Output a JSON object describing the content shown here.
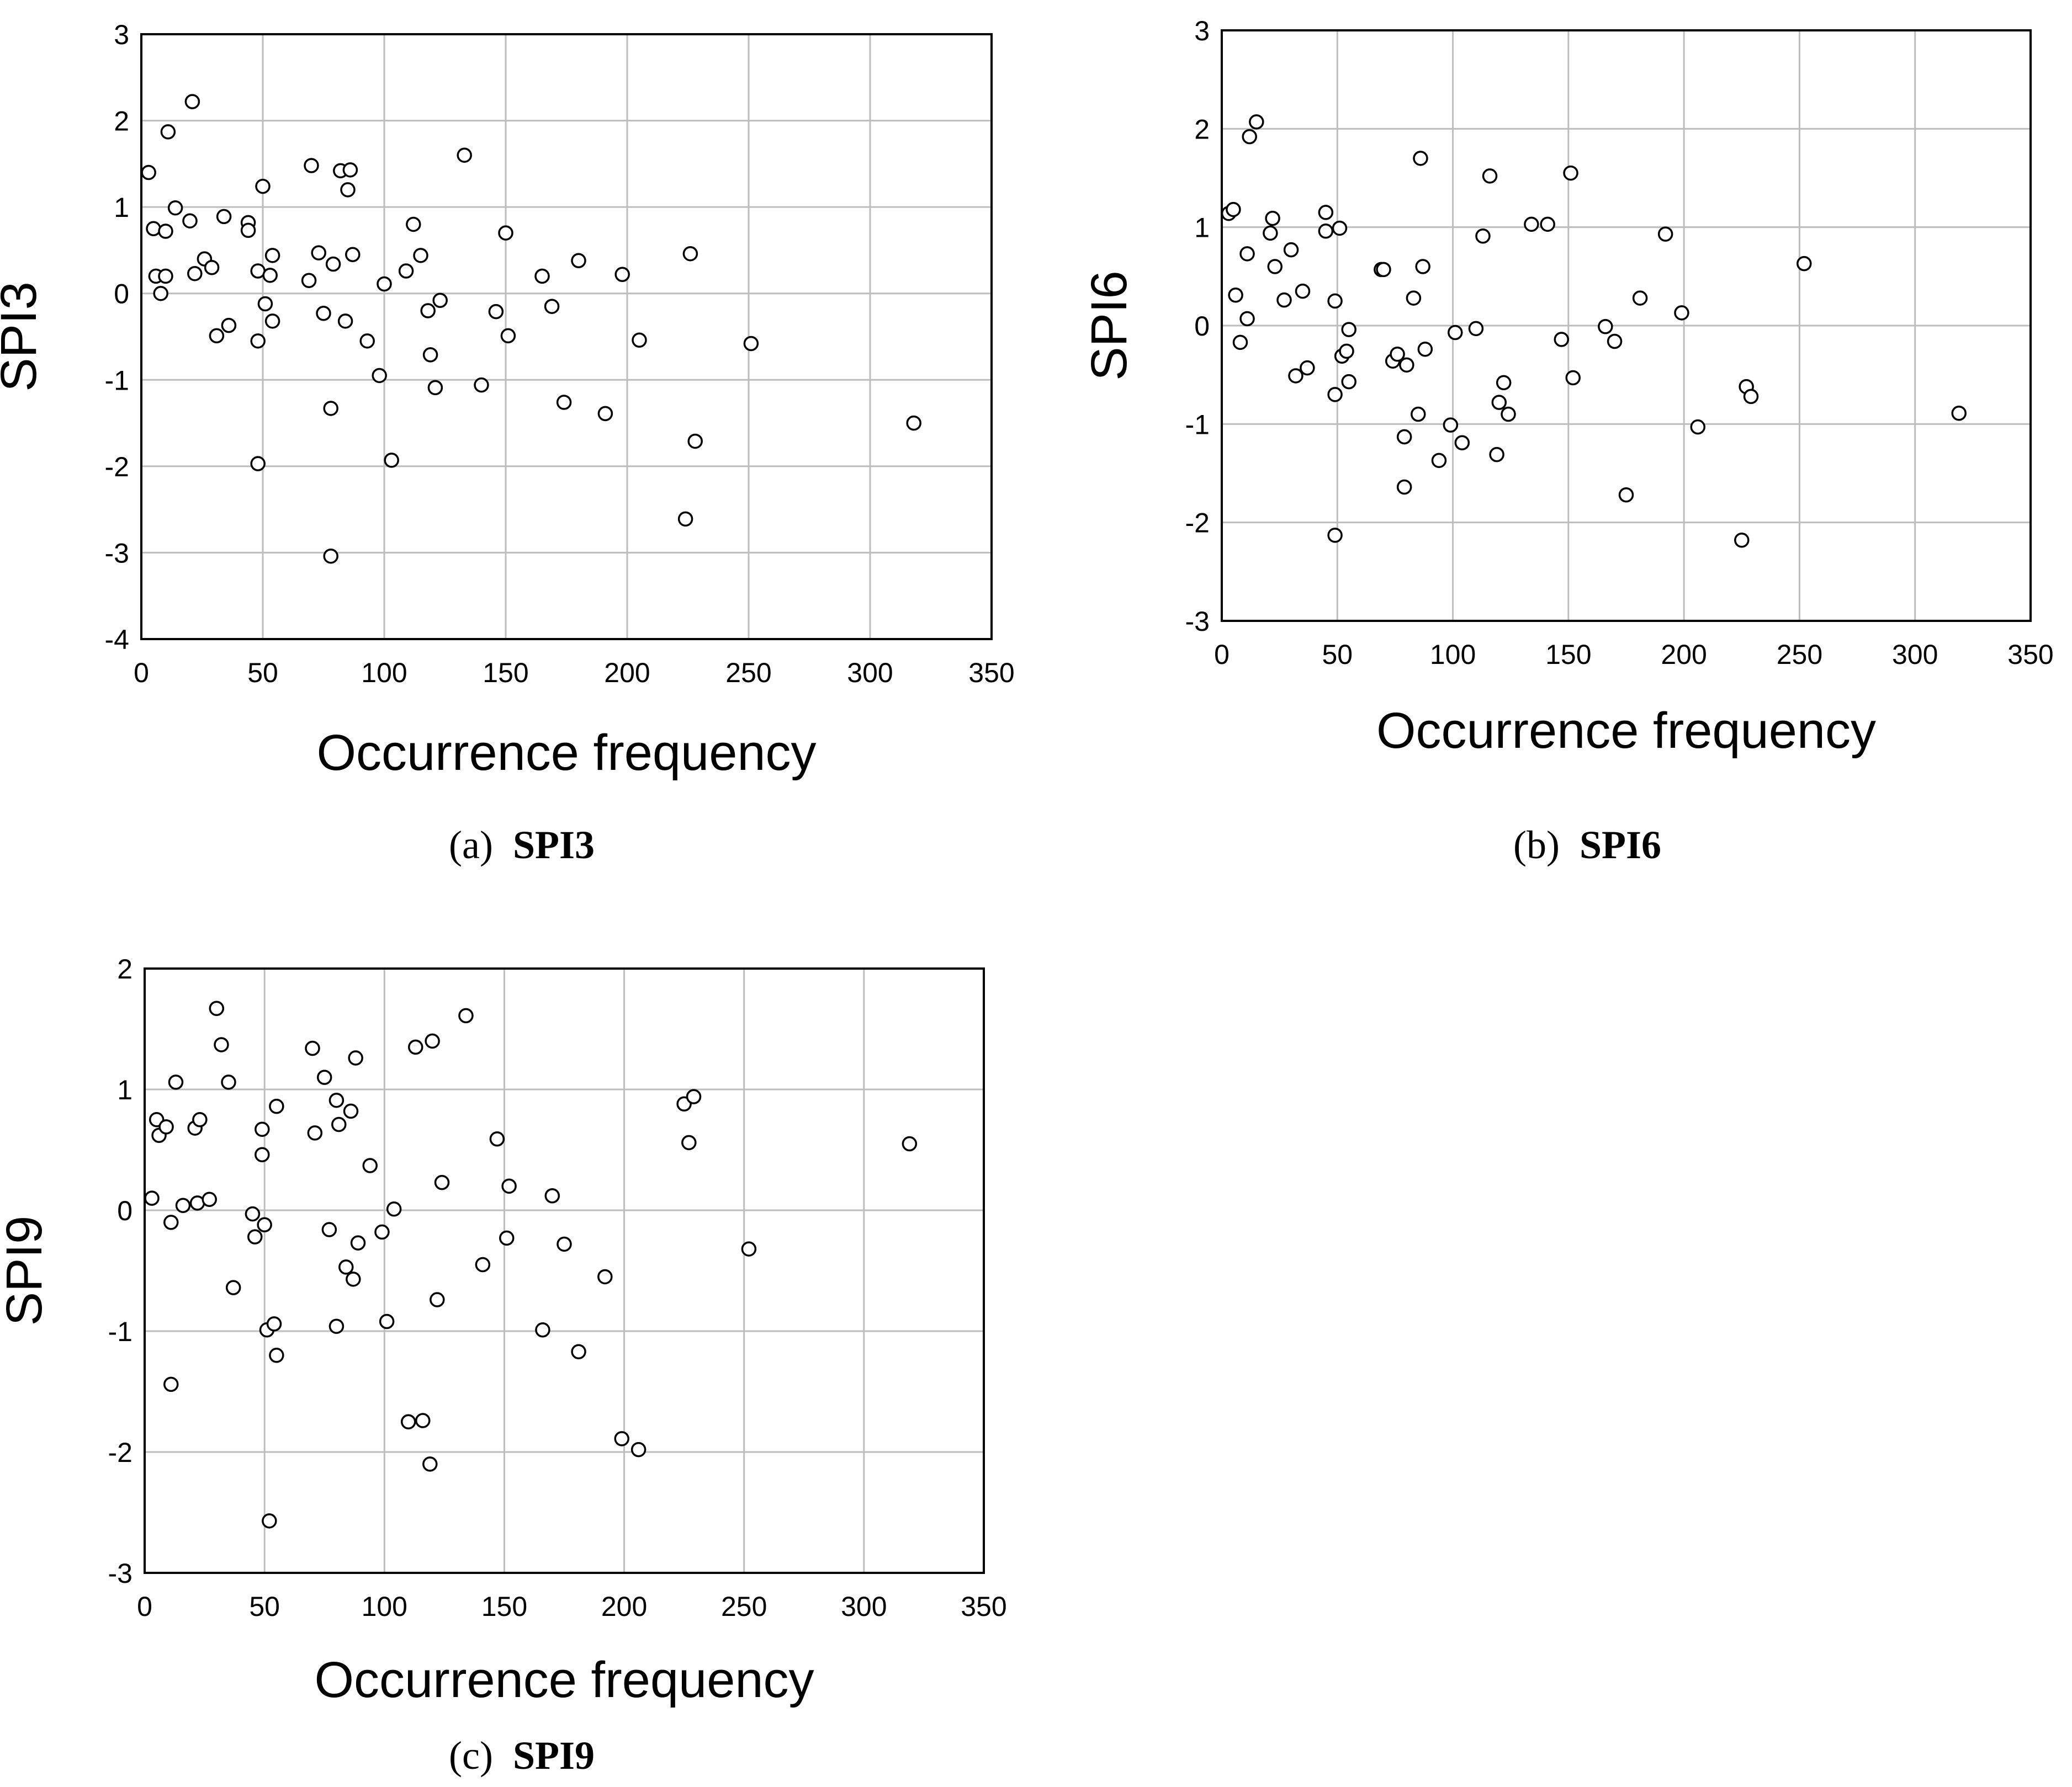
{
  "chart_data": [
    {
      "id": "spi3",
      "type": "scatter",
      "title": "",
      "caption": {
        "label": "(a)",
        "name": "SPI3"
      },
      "xlabel": "Occurrence frequency",
      "ylabel": "SPI3",
      "xlim": [
        0,
        350
      ],
      "ylim": [
        -4,
        3
      ],
      "xticks": [
        0,
        50,
        100,
        150,
        200,
        250,
        300,
        350
      ],
      "yticks": [
        -4,
        -3,
        -2,
        -1,
        0,
        1,
        2,
        3
      ],
      "grid": true,
      "points": [
        [
          3,
          1.4
        ],
        [
          5,
          0.75
        ],
        [
          6,
          0.2
        ],
        [
          8,
          0.0
        ],
        [
          10,
          0.72
        ],
        [
          10,
          0.2
        ],
        [
          11,
          1.87
        ],
        [
          14,
          0.99
        ],
        [
          20,
          0.84
        ],
        [
          21,
          2.22
        ],
        [
          22,
          0.23
        ],
        [
          26,
          0.4
        ],
        [
          29,
          0.3
        ],
        [
          31,
          -0.49
        ],
        [
          34,
          0.89
        ],
        [
          36,
          -0.37
        ],
        [
          44,
          0.82
        ],
        [
          44,
          0.73
        ],
        [
          48,
          0.26
        ],
        [
          48,
          -0.55
        ],
        [
          48,
          -1.97
        ],
        [
          50,
          1.24
        ],
        [
          51,
          -0.12
        ],
        [
          53,
          0.21
        ],
        [
          54,
          0.44
        ],
        [
          54,
          -0.32
        ],
        [
          69,
          0.15
        ],
        [
          70,
          1.48
        ],
        [
          73,
          0.47
        ],
        [
          75,
          -0.23
        ],
        [
          78,
          -1.33
        ],
        [
          78,
          -3.04
        ],
        [
          79,
          0.34
        ],
        [
          82,
          1.42
        ],
        [
          84,
          -0.32
        ],
        [
          85,
          1.2
        ],
        [
          86,
          1.43
        ],
        [
          87,
          0.45
        ],
        [
          93,
          -0.55
        ],
        [
          98,
          -0.95
        ],
        [
          100,
          0.11
        ],
        [
          103,
          -1.93
        ],
        [
          109,
          0.26
        ],
        [
          112,
          0.8
        ],
        [
          115,
          0.44
        ],
        [
          118,
          -0.2
        ],
        [
          119,
          -0.71
        ],
        [
          121,
          -1.09
        ],
        [
          123,
          -0.08
        ],
        [
          133,
          1.6
        ],
        [
          140,
          -1.06
        ],
        [
          146,
          -0.21
        ],
        [
          150,
          0.7
        ],
        [
          151,
          -0.49
        ],
        [
          165,
          0.2
        ],
        [
          169,
          -0.15
        ],
        [
          174,
          -1.26
        ],
        [
          180,
          0.38
        ],
        [
          191,
          -1.39
        ],
        [
          198,
          0.22
        ],
        [
          205,
          -0.54
        ],
        [
          224,
          -2.61
        ],
        [
          226,
          0.46
        ],
        [
          228,
          -1.71
        ],
        [
          251,
          -0.58
        ],
        [
          318,
          -1.5
        ]
      ]
    },
    {
      "id": "spi6",
      "type": "scatter",
      "title": "",
      "caption": {
        "label": "(b)",
        "name": "SPI6"
      },
      "xlabel": "Occurrence frequency",
      "ylabel": "SPI6",
      "xlim": [
        0,
        350
      ],
      "ylim": [
        -3,
        3
      ],
      "xticks": [
        0,
        50,
        100,
        150,
        200,
        250,
        300,
        350
      ],
      "yticks": [
        -3,
        -2,
        -1,
        0,
        1,
        2,
        3
      ],
      "grid": true,
      "points": [
        [
          3,
          1.14
        ],
        [
          5,
          1.18
        ],
        [
          6,
          0.31
        ],
        [
          8,
          -0.17
        ],
        [
          11,
          0.73
        ],
        [
          11,
          0.07
        ],
        [
          12,
          1.92
        ],
        [
          15,
          2.07
        ],
        [
          21,
          0.94
        ],
        [
          22,
          1.09
        ],
        [
          23,
          0.6
        ],
        [
          27,
          0.26
        ],
        [
          30,
          0.77
        ],
        [
          32,
          -0.51
        ],
        [
          35,
          0.35
        ],
        [
          37,
          -0.43
        ],
        [
          45,
          1.15
        ],
        [
          45,
          0.96
        ],
        [
          49,
          0.25
        ],
        [
          49,
          -0.7
        ],
        [
          49,
          -2.13
        ],
        [
          51,
          0.99
        ],
        [
          52,
          -0.31
        ],
        [
          54,
          -0.26
        ],
        [
          55,
          -0.04
        ],
        [
          55,
          -0.57
        ],
        [
          69,
          0.57
        ],
        [
          70,
          0.57
        ],
        [
          74,
          -0.36
        ],
        [
          76,
          -0.29
        ],
        [
          79,
          -1.13
        ],
        [
          79,
          -1.64
        ],
        [
          80,
          -0.4
        ],
        [
          83,
          0.28
        ],
        [
          85,
          -0.9
        ],
        [
          86,
          1.7
        ],
        [
          87,
          0.6
        ],
        [
          88,
          -0.24
        ],
        [
          94,
          -1.37
        ],
        [
          99,
          -1.01
        ],
        [
          101,
          -0.07
        ],
        [
          104,
          -1.19
        ],
        [
          110,
          -0.03
        ],
        [
          113,
          0.91
        ],
        [
          116,
          1.52
        ],
        [
          119,
          -1.31
        ],
        [
          120,
          -0.78
        ],
        [
          122,
          -0.58
        ],
        [
          124,
          -0.9
        ],
        [
          134,
          1.03
        ],
        [
          141,
          1.03
        ],
        [
          147,
          -0.14
        ],
        [
          151,
          1.55
        ],
        [
          152,
          -0.53
        ],
        [
          166,
          -0.01
        ],
        [
          170,
          -0.16
        ],
        [
          175,
          -1.72
        ],
        [
          181,
          0.28
        ],
        [
          192,
          0.93
        ],
        [
          199,
          0.13
        ],
        [
          206,
          -1.03
        ],
        [
          225,
          -2.18
        ],
        [
          227,
          -0.62
        ],
        [
          229,
          -0.72
        ],
        [
          252,
          0.63
        ],
        [
          319,
          -0.89
        ]
      ]
    },
    {
      "id": "spi9",
      "type": "scatter",
      "title": "",
      "caption": {
        "label": "(c)",
        "name": "SPI9"
      },
      "xlabel": "Occurrence frequency",
      "ylabel": "SPI9",
      "xlim": [
        0,
        350
      ],
      "ylim": [
        -3,
        2
      ],
      "xticks": [
        0,
        50,
        100,
        150,
        200,
        250,
        300,
        350
      ],
      "yticks": [
        -3,
        -2,
        -1,
        0,
        1,
        2
      ],
      "grid": true,
      "points": [
        [
          3,
          0.1
        ],
        [
          5,
          0.75
        ],
        [
          6,
          0.62
        ],
        [
          9,
          0.69
        ],
        [
          11,
          -0.1
        ],
        [
          11,
          -1.44
        ],
        [
          13,
          1.06
        ],
        [
          16,
          0.04
        ],
        [
          21,
          0.68
        ],
        [
          22,
          0.06
        ],
        [
          23,
          0.75
        ],
        [
          27,
          0.09
        ],
        [
          30,
          1.67
        ],
        [
          32,
          1.37
        ],
        [
          35,
          1.06
        ],
        [
          37,
          -0.64
        ],
        [
          45,
          -0.03
        ],
        [
          46,
          -0.22
        ],
        [
          49,
          0.46
        ],
        [
          49,
          0.67
        ],
        [
          50,
          -0.12
        ],
        [
          51,
          -0.99
        ],
        [
          52,
          -2.57
        ],
        [
          54,
          -0.94
        ],
        [
          55,
          -1.2
        ],
        [
          55,
          0.86
        ],
        [
          70,
          1.34
        ],
        [
          71,
          0.64
        ],
        [
          75,
          1.1
        ],
        [
          77,
          -0.16
        ],
        [
          80,
          -0.96
        ],
        [
          80,
          0.91
        ],
        [
          81,
          0.71
        ],
        [
          84,
          -0.47
        ],
        [
          86,
          0.82
        ],
        [
          87,
          -0.57
        ],
        [
          88,
          1.26
        ],
        [
          89,
          -0.27
        ],
        [
          94,
          0.37
        ],
        [
          99,
          -0.18
        ],
        [
          101,
          -0.92
        ],
        [
          104,
          0.01
        ],
        [
          110,
          -1.75
        ],
        [
          113,
          1.35
        ],
        [
          116,
          -1.74
        ],
        [
          119,
          -2.1
        ],
        [
          120,
          1.4
        ],
        [
          122,
          -0.74
        ],
        [
          124,
          0.23
        ],
        [
          134,
          1.61
        ],
        [
          141,
          -0.45
        ],
        [
          147,
          0.59
        ],
        [
          151,
          -0.23
        ],
        [
          152,
          0.2
        ],
        [
          166,
          -0.99
        ],
        [
          170,
          0.12
        ],
        [
          175,
          -0.28
        ],
        [
          181,
          -1.17
        ],
        [
          192,
          -0.55
        ],
        [
          199,
          -1.89
        ],
        [
          206,
          -1.98
        ],
        [
          225,
          0.88
        ],
        [
          227,
          0.56
        ],
        [
          229,
          0.94
        ],
        [
          252,
          -0.32
        ],
        [
          319,
          0.55
        ]
      ]
    }
  ]
}
